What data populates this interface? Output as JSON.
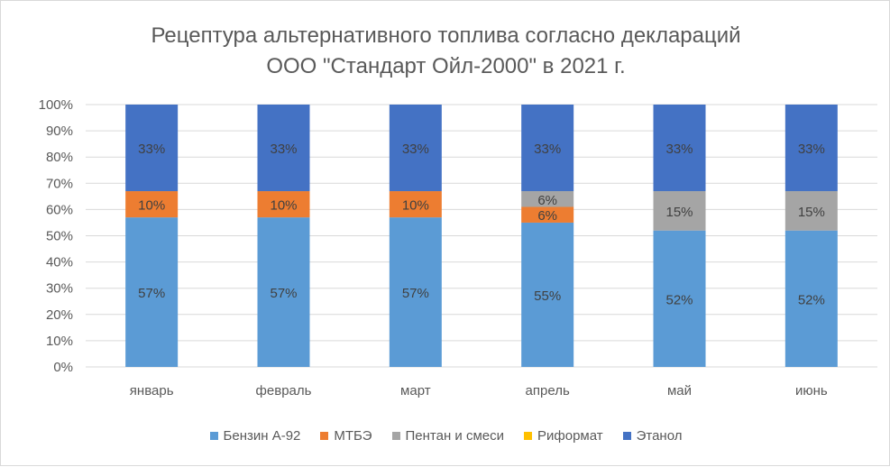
{
  "chart_data": {
    "type": "bar",
    "stacked": "percent",
    "title_lines": [
      "Рецептура альтернативного топлива согласно деклараций",
      "ООО \"Стандарт Ойл-2000\" в 2021 г."
    ],
    "categories": [
      "январь",
      "февраль",
      "март",
      "апрель",
      "май",
      "июнь"
    ],
    "series": [
      {
        "name": "Бензин А-92",
        "color": "#5B9BD5",
        "values": [
          57,
          57,
          57,
          55,
          52,
          52
        ]
      },
      {
        "name": "МТБЭ",
        "color": "#ED7D31",
        "values": [
          10,
          10,
          10,
          6,
          0,
          0
        ]
      },
      {
        "name": "Пентан и смеси",
        "color": "#A5A5A5",
        "values": [
          0,
          0,
          0,
          6,
          15,
          15
        ]
      },
      {
        "name": "Риформат",
        "color": "#FFC000",
        "values": [
          0,
          0,
          0,
          0,
          0,
          0
        ]
      },
      {
        "name": "Этанол",
        "color": "#4472C4",
        "values": [
          33,
          33,
          33,
          33,
          33,
          33
        ]
      }
    ],
    "y_ticks": [
      "0%",
      "10%",
      "20%",
      "30%",
      "40%",
      "50%",
      "60%",
      "70%",
      "80%",
      "90%",
      "100%"
    ],
    "ylim": [
      0,
      100
    ],
    "grid": true,
    "legend_position": "bottom",
    "data_labels": true
  }
}
